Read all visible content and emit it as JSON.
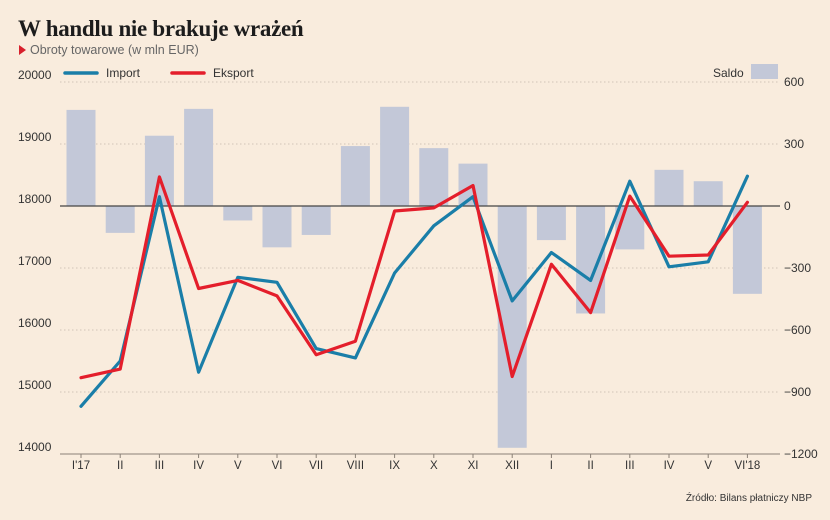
{
  "header": {
    "title": "W handlu nie brakuje wrażeń",
    "subtitle": "Obroty towarowe (w mln EUR)"
  },
  "footer": {
    "source": "Źródło: Bilans płatniczy NBP"
  },
  "chart_data": {
    "type": "line",
    "categories": [
      "I'17",
      "II",
      "III",
      "IV",
      "V",
      "VI",
      "VII",
      "VIII",
      "IX",
      "X",
      "XI",
      "XII",
      "I",
      "II",
      "III",
      "IV",
      "V",
      "VI'18"
    ],
    "series": [
      {
        "name": "Import",
        "axis": "left",
        "type": "line",
        "color": "#1a7ea8",
        "values": [
          14770,
          15500,
          18150,
          15320,
          16850,
          16770,
          15700,
          15550,
          16920,
          17680,
          18150,
          16470,
          17250,
          16800,
          18400,
          17020,
          17100,
          18480
        ]
      },
      {
        "name": "Eksport",
        "axis": "left",
        "type": "line",
        "color": "#e41e2b",
        "values": [
          15230,
          15370,
          18470,
          16670,
          16800,
          16550,
          15600,
          15820,
          17920,
          17970,
          18330,
          15250,
          17060,
          16280,
          18160,
          17190,
          17210,
          18060
        ]
      },
      {
        "name": "Saldo",
        "axis": "right",
        "type": "bar",
        "color": "#c3c8d8",
        "values": [
          465,
          -130,
          340,
          470,
          -70,
          -200,
          -140,
          290,
          480,
          280,
          205,
          -1170,
          -165,
          -520,
          -210,
          175,
          120,
          -425
        ]
      }
    ],
    "y_left": {
      "min": 14000,
      "max": 20000,
      "ticks": [
        20000,
        19000,
        18000,
        17000,
        16000,
        15000,
        14000
      ]
    },
    "y_right": {
      "min": -1200,
      "max": 600,
      "ticks": [
        600,
        300,
        0,
        -300,
        -600,
        -900,
        -1200
      ]
    },
    "legend": {
      "position": "top",
      "items": [
        "Import",
        "Eksport",
        "Saldo"
      ]
    },
    "grid": true
  }
}
